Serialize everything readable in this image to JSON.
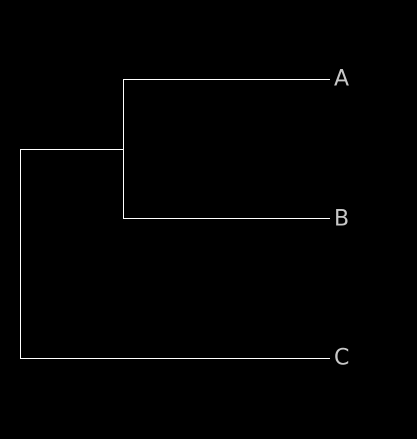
{
  "diagram": {
    "type": "dendrogram",
    "orientation": "left-to-right",
    "background_color": "#000000",
    "line_color": "#ffffff",
    "label_color": "#c8c8c8",
    "tree": {
      "children": [
        {
          "children": [
            {
              "label": "A"
            },
            {
              "label": "B"
            }
          ]
        },
        {
          "label": "C"
        }
      ]
    },
    "leaves": [
      {
        "id": "a",
        "label": "A"
      },
      {
        "id": "b",
        "label": "B"
      },
      {
        "id": "c",
        "label": "C"
      }
    ]
  }
}
